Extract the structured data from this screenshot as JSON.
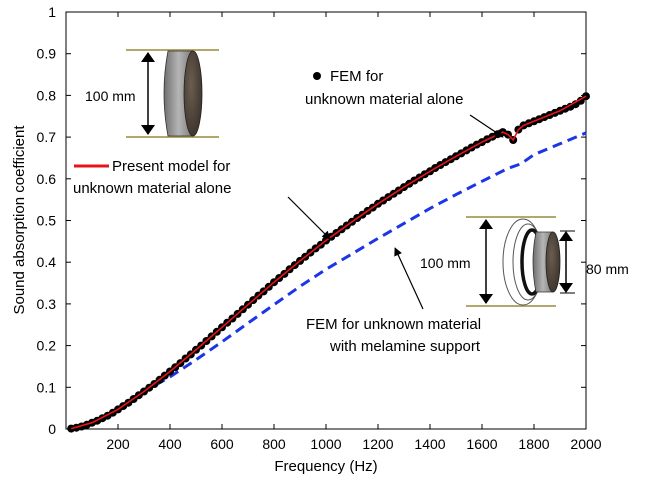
{
  "chart_data": {
    "type": "line",
    "xlabel": "Frequency (Hz)",
    "ylabel": "Sound absorption coefficient",
    "xlim": [
      0,
      2000
    ],
    "ylim": [
      0,
      1
    ],
    "xticks": [
      200,
      400,
      600,
      800,
      1000,
      1200,
      1400,
      1600,
      1800,
      2000
    ],
    "yticks": [
      0,
      0.1,
      0.2,
      0.3,
      0.4,
      0.5,
      0.6,
      0.7,
      0.8,
      0.9,
      1
    ],
    "xtick_labels": [
      "200",
      "400",
      "600",
      "800",
      "1000",
      "1200",
      "1400",
      "1600",
      "1800",
      "2000"
    ],
    "ytick_labels": [
      "0",
      "0.1",
      "0.2",
      "0.3",
      "0.4",
      "0.5",
      "0.6",
      "0.7",
      "0.8",
      "0.9",
      "1"
    ],
    "grid": false,
    "series": [
      {
        "name": "FEM for unknown material alone",
        "style": "markers",
        "color": "#000000",
        "x": [
          20,
          40,
          60,
          80,
          100,
          120,
          140,
          160,
          180,
          200,
          220,
          240,
          260,
          280,
          300,
          320,
          340,
          360,
          380,
          400,
          420,
          440,
          460,
          480,
          500,
          520,
          540,
          560,
          580,
          600,
          620,
          640,
          660,
          680,
          700,
          720,
          740,
          760,
          780,
          800,
          820,
          840,
          860,
          880,
          900,
          920,
          940,
          960,
          980,
          1000,
          1020,
          1040,
          1060,
          1080,
          1100,
          1120,
          1140,
          1160,
          1180,
          1200,
          1220,
          1240,
          1260,
          1280,
          1300,
          1320,
          1340,
          1360,
          1380,
          1400,
          1420,
          1440,
          1460,
          1480,
          1500,
          1520,
          1540,
          1560,
          1580,
          1600,
          1620,
          1640,
          1660,
          1680,
          1700,
          1720,
          1740,
          1760,
          1780,
          1800,
          1820,
          1840,
          1860,
          1880,
          1900,
          1920,
          1940,
          1960,
          1980,
          2000
        ],
        "y": [
          0.001,
          0.003,
          0.006,
          0.01,
          0.015,
          0.02,
          0.026,
          0.032,
          0.039,
          0.047,
          0.055,
          0.063,
          0.072,
          0.081,
          0.09,
          0.099,
          0.108,
          0.118,
          0.128,
          0.138,
          0.148,
          0.158,
          0.169,
          0.179,
          0.19,
          0.2,
          0.211,
          0.222,
          0.233,
          0.244,
          0.255,
          0.265,
          0.276,
          0.287,
          0.298,
          0.309,
          0.32,
          0.33,
          0.341,
          0.352,
          0.362,
          0.372,
          0.383,
          0.393,
          0.403,
          0.413,
          0.423,
          0.433,
          0.442,
          0.452,
          0.461,
          0.47,
          0.479,
          0.488,
          0.497,
          0.506,
          0.514,
          0.523,
          0.531,
          0.54,
          0.548,
          0.556,
          0.564,
          0.572,
          0.58,
          0.588,
          0.596,
          0.603,
          0.611,
          0.618,
          0.626,
          0.633,
          0.64,
          0.647,
          0.654,
          0.661,
          0.668,
          0.675,
          0.682,
          0.688,
          0.695,
          0.701,
          0.707,
          0.712,
          0.706,
          0.693,
          0.718,
          0.728,
          0.733,
          0.738,
          0.743,
          0.748,
          0.753,
          0.758,
          0.763,
          0.768,
          0.773,
          0.779,
          0.787,
          0.798
        ]
      },
      {
        "name": "Present model for unknown material alone",
        "style": "solid",
        "color": "#e8141b",
        "x": [
          20,
          100,
          200,
          300,
          400,
          500,
          600,
          700,
          800,
          900,
          1000,
          1100,
          1200,
          1300,
          1400,
          1500,
          1600,
          1680,
          1700,
          1720,
          1740,
          1760,
          1800,
          1900,
          2000
        ],
        "y": [
          0.001,
          0.015,
          0.047,
          0.09,
          0.138,
          0.19,
          0.244,
          0.298,
          0.352,
          0.403,
          0.452,
          0.497,
          0.54,
          0.58,
          0.618,
          0.654,
          0.688,
          0.712,
          0.706,
          0.693,
          0.718,
          0.728,
          0.738,
          0.763,
          0.798
        ]
      },
      {
        "name": "FEM for unknown material with melamine support",
        "style": "dashed",
        "color": "#1c35e6",
        "x": [
          20,
          100,
          200,
          300,
          400,
          500,
          600,
          700,
          800,
          900,
          1000,
          1100,
          1200,
          1300,
          1400,
          1500,
          1600,
          1700,
          1750,
          1800,
          1900,
          2000
        ],
        "y": [
          0.001,
          0.015,
          0.047,
          0.09,
          0.125,
          0.166,
          0.209,
          0.254,
          0.298,
          0.342,
          0.383,
          0.42,
          0.457,
          0.493,
          0.529,
          0.562,
          0.594,
          0.625,
          0.636,
          0.658,
          0.684,
          0.71
        ]
      }
    ],
    "annotations": {
      "fem_alone": [
        "FEM for",
        "unknown material alone"
      ],
      "model_alone": [
        "Present model for",
        "unknown material alone"
      ],
      "fem_melamine": [
        "FEM for unknown material",
        "with melamine support"
      ]
    },
    "insets": {
      "left_dimension": "100 mm",
      "right_outer_dimension": "100 mm",
      "right_inner_dimension": "80 mm"
    }
  }
}
